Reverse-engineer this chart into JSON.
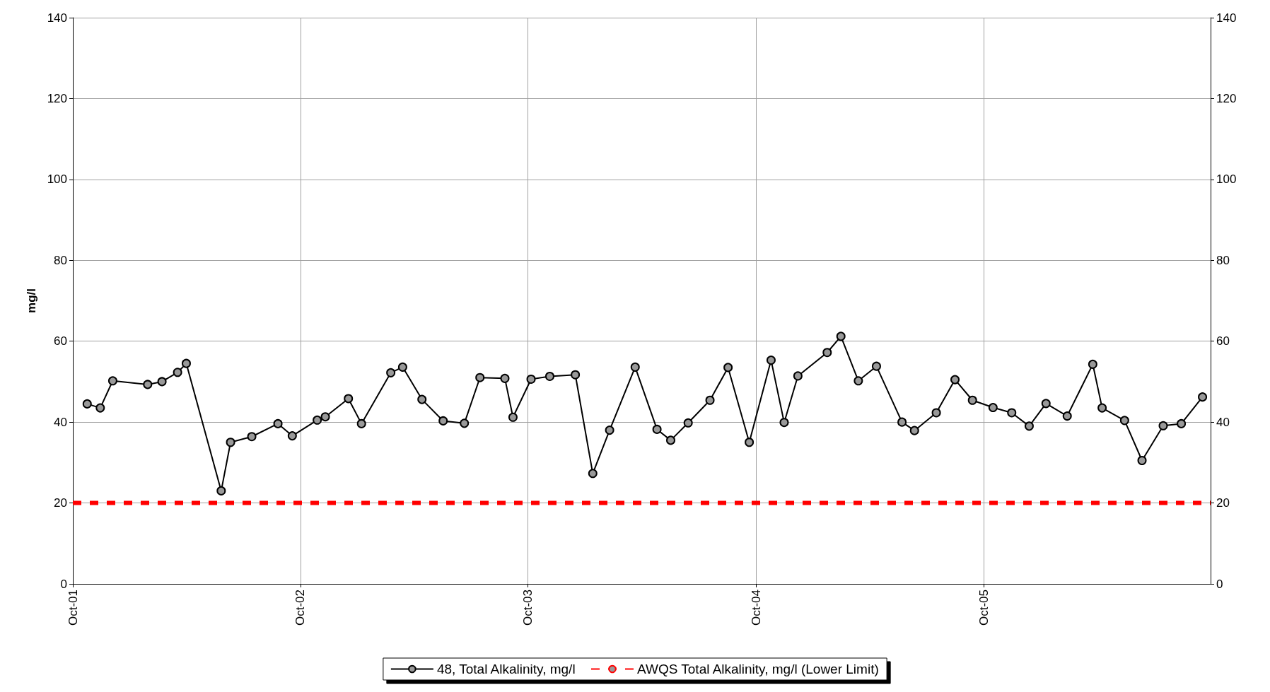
{
  "chart_data": {
    "type": "line",
    "ylabel": "mg/l",
    "xlim": [
      "2001-10-01",
      "2006-09-30"
    ],
    "xticks": [
      {
        "value": "2001-10-01",
        "label": "Oct-01"
      },
      {
        "value": "2002-10-01",
        "label": "Oct-02"
      },
      {
        "value": "2003-10-01",
        "label": "Oct-03"
      },
      {
        "value": "2004-10-01",
        "label": "Oct-04"
      },
      {
        "value": "2005-10-01",
        "label": "Oct-05"
      }
    ],
    "ylim": [
      0,
      140
    ],
    "yticks": [
      0,
      20,
      40,
      60,
      80,
      100,
      120,
      140
    ],
    "y2lim": [
      0,
      140
    ],
    "y2ticks": [
      0,
      20,
      40,
      60,
      80,
      100,
      120,
      140
    ],
    "grid": true,
    "legend": "bottom",
    "series": [
      {
        "name": "48, Total Alkalinity, mg/l",
        "color": "#000000",
        "marker": "circle",
        "line_style": "solid",
        "x": [
          "2001-10-24",
          "2001-11-14",
          "2001-12-04",
          "2002-01-29",
          "2002-02-21",
          "2002-03-18",
          "2002-04-01",
          "2002-05-27",
          "2002-06-11",
          "2002-07-15",
          "2002-08-26",
          "2002-09-18",
          "2002-10-28",
          "2002-11-10",
          "2002-12-17",
          "2003-01-07",
          "2003-02-23",
          "2003-03-14",
          "2003-04-14",
          "2003-05-18",
          "2003-06-21",
          "2003-07-16",
          "2003-08-25",
          "2003-09-07",
          "2003-10-06",
          "2003-11-05",
          "2003-12-16",
          "2004-01-13",
          "2004-02-09",
          "2004-03-21",
          "2004-04-25",
          "2004-05-17",
          "2004-06-14",
          "2004-07-19",
          "2004-08-17",
          "2004-09-20",
          "2004-10-25",
          "2004-11-15",
          "2004-12-07",
          "2005-01-23",
          "2005-02-14",
          "2005-03-14",
          "2005-04-12",
          "2005-05-23",
          "2005-06-12",
          "2005-07-17",
          "2005-08-16",
          "2005-09-13",
          "2005-10-16",
          "2005-11-15",
          "2005-12-13",
          "2006-01-09",
          "2006-02-12",
          "2006-03-25",
          "2006-04-09",
          "2006-05-15",
          "2006-06-12",
          "2006-07-16",
          "2006-08-14",
          "2006-09-17"
        ],
        "values": [
          44.5,
          43.5,
          50.2,
          49.3,
          50,
          52.3,
          54.5,
          23,
          35,
          36.4,
          39.6,
          36.6,
          40.5,
          41.3,
          45.8,
          39.6,
          52.2,
          53.6,
          45.6,
          40.3,
          39.7,
          51,
          50.8,
          41.2,
          50.6,
          51.3,
          51.7,
          27.3,
          38,
          53.6,
          38.2,
          35.5,
          39.8,
          45.4,
          53.5,
          35,
          55.3,
          39.9,
          51.4,
          57.2,
          61.2,
          50.2,
          53.8,
          40,
          37.9,
          42.3,
          50.5,
          45.4,
          43.6,
          42.3,
          39,
          44.6,
          41.5,
          54.3,
          43.5,
          40.4,
          30.5,
          39.1,
          39.6,
          46.2
        ]
      },
      {
        "name": "AWQS Total Alkalinity, mg/l (Lower Limit)",
        "color": "#ff0000",
        "marker": "none",
        "line_style": "dashed",
        "x": [
          "2001-10-01",
          "2006-09-30"
        ],
        "values": [
          20,
          20
        ]
      }
    ]
  }
}
